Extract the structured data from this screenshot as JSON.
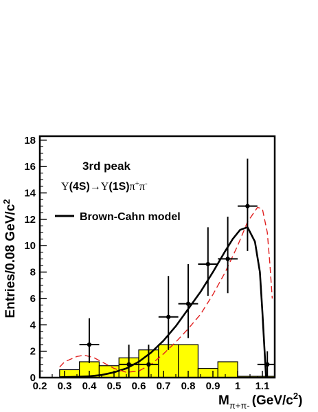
{
  "chart_data": {
    "type": "histogram",
    "title": "",
    "xlabel": "M",
    "xlabel_sub": "π+π-",
    "xlabel_unit": "(GeV/c",
    "xlabel_unit_sup": "2",
    "xlabel_unit_close": ")",
    "ylabel": "Entries/0.08 GeV/c",
    "ylabel_sup": "2",
    "xlim": [
      0.2,
      1.15
    ],
    "ylim": [
      0,
      18.3
    ],
    "x_ticks": [
      0.2,
      0.3,
      0.4,
      0.5,
      0.6,
      0.7,
      0.8,
      0.9,
      1.0,
      1.1
    ],
    "x_tick_labels": [
      "0.2",
      "0.3",
      "0.4",
      "0.5",
      "0.6",
      "0.7",
      "0.8",
      "0.9",
      "1",
      "1.1"
    ],
    "y_ticks": [
      0,
      2,
      4,
      6,
      8,
      10,
      12,
      14,
      16,
      18
    ],
    "y_tick_labels": [
      "0",
      "2",
      "4",
      "6",
      "8",
      "10",
      "12",
      "14",
      "16",
      "18"
    ],
    "annotations": {
      "peak_label": "3rd peak",
      "decay_upsilon4s": "Υ",
      "decay_4s": "(4S)",
      "decay_arrow": "→",
      "decay_upsilon1s": "Υ",
      "decay_1s": "(1S)",
      "decay_pi1": "π",
      "decay_pi1_sup": "+",
      "decay_pi2": "π",
      "decay_pi2_sup": "-"
    },
    "legend": {
      "placement": "top-left",
      "entries": [
        {
          "label": "Brown-Cahn model",
          "style": "solid"
        }
      ]
    },
    "background_histogram": {
      "color": "#ffff00",
      "bin_edges": [
        0.28,
        0.36,
        0.44,
        0.52,
        0.6,
        0.68,
        0.76,
        0.84,
        0.92,
        1.0,
        1.08,
        1.16
      ],
      "values": [
        0.6,
        1.2,
        0.9,
        1.5,
        2.1,
        2.5,
        2.5,
        0.7,
        1.2,
        0.1,
        0.1
      ]
    },
    "data_points": {
      "x": [
        0.4,
        0.56,
        0.64,
        0.72,
        0.8,
        0.88,
        0.96,
        1.04,
        1.12
      ],
      "y": [
        2.5,
        1.0,
        1.0,
        4.6,
        5.6,
        8.6,
        9.0,
        13.0,
        1.0
      ],
      "err_up": [
        2.0,
        1.5,
        1.5,
        3.1,
        3.0,
        2.8,
        3.2,
        3.6,
        1.0
      ],
      "err_down": [
        1.4,
        1.0,
        1.0,
        2.5,
        2.6,
        2.4,
        2.6,
        3.4,
        1.0
      ],
      "x_half_width": 0.04
    },
    "model_curves": [
      {
        "name": "Brown-Cahn model",
        "color": "#000000",
        "style": "solid",
        "x": [
          0.28,
          0.35,
          0.4,
          0.45,
          0.5,
          0.55,
          0.6,
          0.65,
          0.7,
          0.75,
          0.8,
          0.85,
          0.9,
          0.95,
          0.98,
          1.01,
          1.04,
          1.07,
          1.09,
          1.1,
          1.115
        ],
        "y": [
          0.03,
          0.06,
          0.1,
          0.2,
          0.4,
          0.7,
          1.2,
          1.9,
          2.8,
          3.9,
          5.2,
          6.5,
          8.0,
          9.6,
          10.5,
          11.2,
          11.4,
          10.3,
          8.0,
          5.0,
          0.0
        ]
      },
      {
        "name": "",
        "color": "#e02020",
        "style": "dashed",
        "x": [
          0.28,
          0.3,
          0.35,
          0.38,
          0.42,
          0.46,
          0.5,
          0.55,
          0.6,
          0.65,
          0.7,
          0.75,
          0.8,
          0.85,
          0.9,
          0.95,
          1.0,
          1.04,
          1.08,
          1.1,
          1.12,
          1.13,
          1.14
        ],
        "y": [
          0.8,
          1.2,
          1.6,
          1.7,
          1.5,
          1.1,
          0.7,
          0.4,
          0.5,
          1.0,
          1.8,
          2.7,
          3.7,
          4.8,
          6.3,
          8.0,
          10.0,
          11.8,
          12.9,
          12.8,
          11.0,
          8.7,
          6.0
        ]
      }
    ]
  }
}
